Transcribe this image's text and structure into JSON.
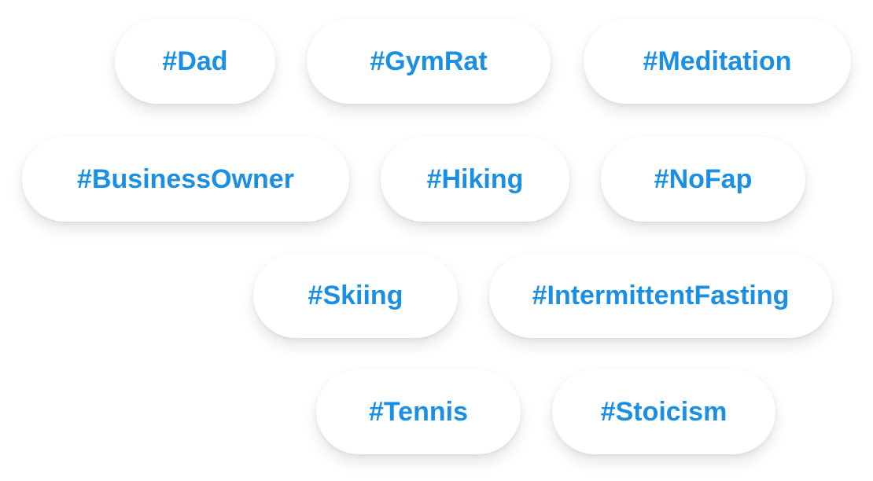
{
  "accent_color": "#1a8fe3",
  "tags": [
    {
      "label": "#Dad"
    },
    {
      "label": "#GymRat"
    },
    {
      "label": "#Meditation"
    },
    {
      "label": "#BusinessOwner"
    },
    {
      "label": "#Hiking"
    },
    {
      "label": "#NoFap"
    },
    {
      "label": "#Skiing"
    },
    {
      "label": "#IntermittentFasting"
    },
    {
      "label": "#Tennis"
    },
    {
      "label": "#Stoicism"
    }
  ]
}
